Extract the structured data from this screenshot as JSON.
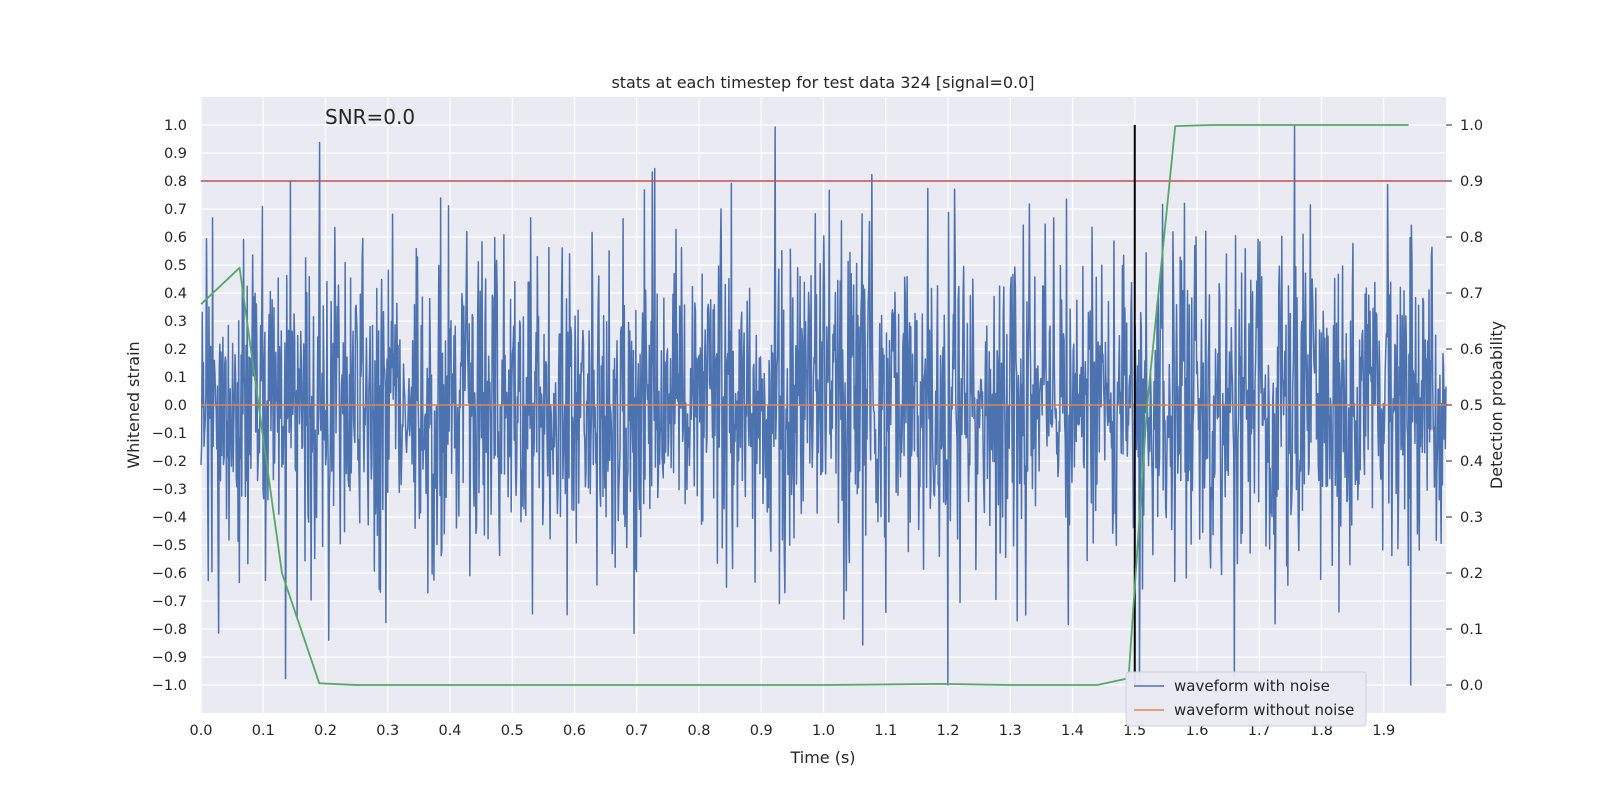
{
  "chart_data": {
    "type": "line",
    "title": "stats at each timestep for test data 324 [signal=0.0]",
    "annotation": "SNR=0.0",
    "xlabel": "Time (s)",
    "ylabel_left": "Whitened strain",
    "ylabel_right": "Detection probability",
    "xlim": [
      0.0,
      2.0
    ],
    "ylim_left": [
      -1.1,
      1.1
    ],
    "ylim_right": [
      -0.05,
      1.05
    ],
    "x_ticks": [
      "0.0",
      "0.1",
      "0.2",
      "0.3",
      "0.4",
      "0.5",
      "0.6",
      "0.7",
      "0.8",
      "0.9",
      "1.0",
      "1.1",
      "1.2",
      "1.3",
      "1.4",
      "1.5",
      "1.6",
      "1.7",
      "1.8",
      "1.9"
    ],
    "y_ticks_left": [
      "1.0",
      "0.9",
      "0.8",
      "0.7",
      "0.6",
      "0.5",
      "0.4",
      "0.3",
      "0.2",
      "0.1",
      "0.0",
      "−0.1",
      "−0.2",
      "−0.3",
      "−0.4",
      "−0.5",
      "−0.6",
      "−0.7",
      "−0.8",
      "−0.9",
      "−1.0"
    ],
    "y_ticks_right": [
      "1.0",
      "0.9",
      "0.8",
      "0.7",
      "0.6",
      "0.5",
      "0.4",
      "0.3",
      "0.2",
      "0.1",
      "0.0"
    ],
    "threshold_right": 0.9,
    "event_time": 1.5,
    "series": [
      {
        "name": "waveform with noise",
        "axis": "left",
        "color": "#4c72b0",
        "kind": "noise",
        "samples": 2048,
        "amplitude_std": 0.3
      },
      {
        "name": "waveform without noise",
        "axis": "left",
        "color": "#dd8452",
        "kind": "flat",
        "value": 0.0
      },
      {
        "name": "detection probability",
        "axis": "right",
        "color": "#55a868",
        "x": [
          0.0,
          0.062,
          0.13,
          0.19,
          0.25,
          0.5,
          0.75,
          1.0,
          1.19,
          1.3,
          1.44,
          1.49,
          1.52,
          1.565,
          1.625,
          1.75,
          1.94
        ],
        "y": [
          0.68,
          0.745,
          0.2,
          0.003,
          0.0,
          0.0,
          0.0,
          0.0,
          0.002,
          0.0,
          0.0,
          0.012,
          0.5,
          0.998,
          1.0,
          1.0,
          1.0
        ]
      }
    ],
    "threshold_color": "#c44e52",
    "event_color": "#000000",
    "legend": {
      "placement": "lower-right",
      "entries": [
        "waveform with noise",
        "waveform without noise"
      ]
    }
  }
}
